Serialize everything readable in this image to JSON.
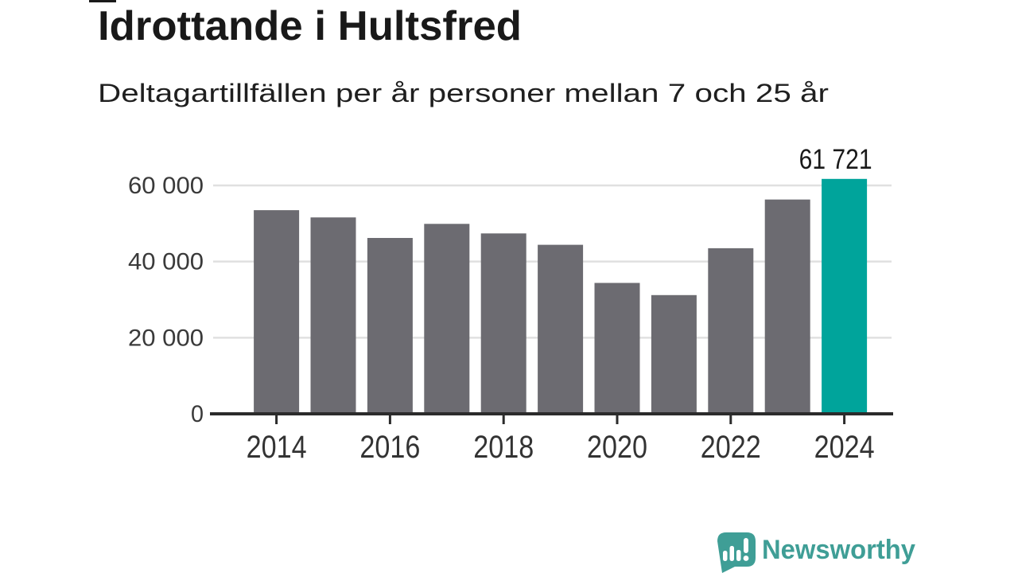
{
  "title": "Idrottande i Hultsfred",
  "subtitle": "Deltagartillfällen per år personer mellan 7 och 25 år",
  "chart_data": {
    "type": "bar",
    "categories": [
      "2014",
      "2015",
      "2016",
      "2017",
      "2018",
      "2019",
      "2020",
      "2021",
      "2022",
      "2023",
      "2024"
    ],
    "values": [
      53500,
      51600,
      46200,
      49900,
      47400,
      44400,
      34400,
      31200,
      43500,
      56300,
      61721
    ],
    "title": "Idrottande i Hultsfred",
    "subtitle": "Deltagartillfällen per år personer mellan 7 och 25 år",
    "xlabel": "",
    "ylabel": "",
    "ylim": [
      0,
      64000
    ],
    "yticks": [
      0,
      20000,
      40000,
      60000
    ],
    "ytick_labels": [
      "0",
      "20 000",
      "40 000",
      "60 000"
    ],
    "xtick_labels": [
      "2014",
      "2016",
      "2018",
      "2020",
      "2022",
      "2024"
    ],
    "grid": true,
    "legend": false,
    "highlight_index": 10,
    "highlight_value_label": "61 721",
    "colors": {
      "bar": "#6c6b71",
      "highlight": "#00a49b",
      "gridline": "#e0e0e0",
      "axis": "#2b2b2b",
      "tick_label": "#333333"
    }
  },
  "branding": {
    "logo_text": "Newsworthy",
    "logo_icon": "bar-chart-speech-bubble-icon",
    "logo_color": "#3f9e96"
  }
}
